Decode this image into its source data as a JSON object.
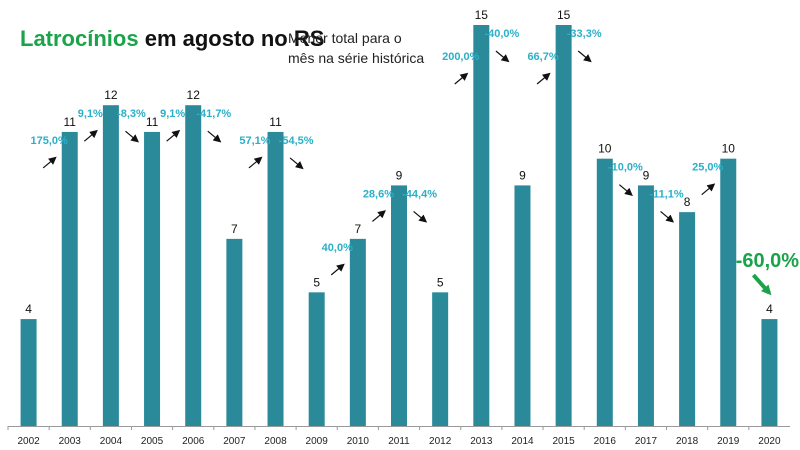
{
  "title_part1": "Latrocínios",
  "title_part2": "em agosto no RS",
  "subtitle_line1": "Menor total para o",
  "subtitle_line2": "mês na série histórica",
  "colors": {
    "bar": "#2a8a99",
    "pct": "#2ab0c8",
    "title_green": "#1aa34a",
    "highlight": "#1aa34a"
  },
  "chart_data": {
    "type": "bar",
    "title": "Latrocínios em agosto no RS",
    "categories": [
      "2002",
      "2003",
      "2004",
      "2005",
      "2006",
      "2007",
      "2008",
      "2009",
      "2010",
      "2011",
      "2012",
      "2013",
      "2014",
      "2015",
      "2016",
      "2017",
      "2018",
      "2019",
      "2020"
    ],
    "values": [
      4,
      11,
      12,
      11,
      12,
      7,
      11,
      5,
      7,
      9,
      5,
      15,
      9,
      15,
      10,
      9,
      8,
      10,
      4
    ],
    "pct_change": [
      "",
      "175,0%",
      "9,1%",
      "-8,3%",
      "9,1%",
      "-41,7%",
      "57,1%",
      "-54,5%",
      "40,0%",
      "28,6%",
      "-44,4%",
      "200,0%",
      "-40,0%",
      "66,7%",
      "-33,3%",
      "-10,0%",
      "-11,1%",
      "25,0%",
      "-60,0%"
    ],
    "highlight_change": "-60,0%",
    "ylim": [
      0,
      15
    ],
    "grid": false,
    "legend": "none"
  }
}
